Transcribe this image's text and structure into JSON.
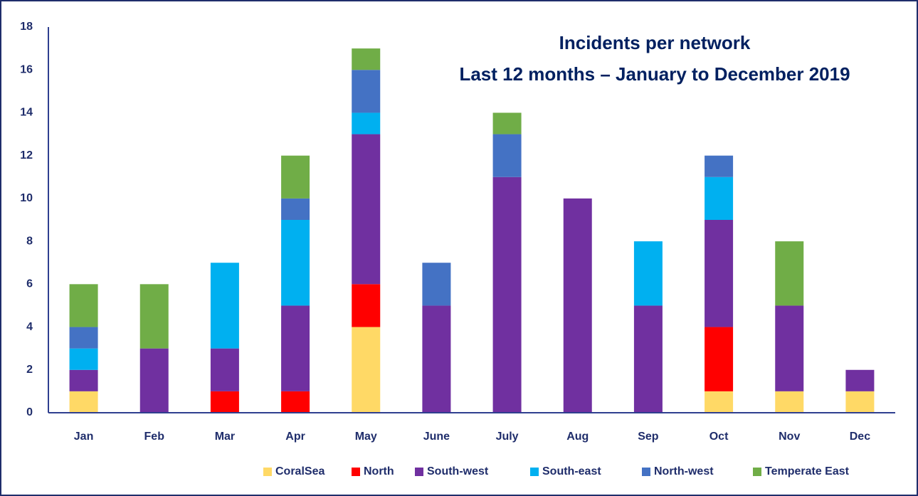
{
  "chart_data": {
    "type": "stacked_bar",
    "title": "Incidents per network",
    "subtitle": "Last 12 months – January to December 2019",
    "categories": [
      "Jan",
      "Feb",
      "Mar",
      "Apr",
      "May",
      "June",
      "July",
      "Aug",
      "Sep",
      "Oct",
      "Nov",
      "Dec"
    ],
    "series": [
      {
        "name": "CoralSea",
        "color": "#ffd966",
        "values": [
          1,
          0,
          0,
          0,
          4,
          0,
          0,
          0,
          0,
          1,
          1,
          1
        ]
      },
      {
        "name": "North",
        "color": "#ff0000",
        "values": [
          0,
          0,
          1,
          1,
          2,
          0,
          0,
          0,
          0,
          3,
          0,
          0
        ]
      },
      {
        "name": "South-west",
        "color": "#7030a0",
        "values": [
          1,
          3,
          2,
          4,
          7,
          5,
          11,
          10,
          5,
          5,
          4,
          1
        ]
      },
      {
        "name": "South-east",
        "color": "#00b0f0",
        "values": [
          1,
          0,
          4,
          4,
          1,
          0,
          0,
          0,
          3,
          2,
          0,
          0
        ]
      },
      {
        "name": "North-west",
        "color": "#4472c4",
        "values": [
          1,
          0,
          0,
          1,
          2,
          2,
          2,
          0,
          0,
          1,
          0,
          0
        ]
      },
      {
        "name": "Temperate East",
        "color": "#70ad47",
        "values": [
          2,
          3,
          0,
          2,
          1,
          0,
          1,
          0,
          0,
          0,
          3,
          0
        ]
      }
    ],
    "ylim": [
      0,
      18
    ],
    "yticks": [
      0,
      2,
      4,
      6,
      8,
      10,
      12,
      14,
      16,
      18
    ],
    "grid": false,
    "legend": "bottom"
  }
}
